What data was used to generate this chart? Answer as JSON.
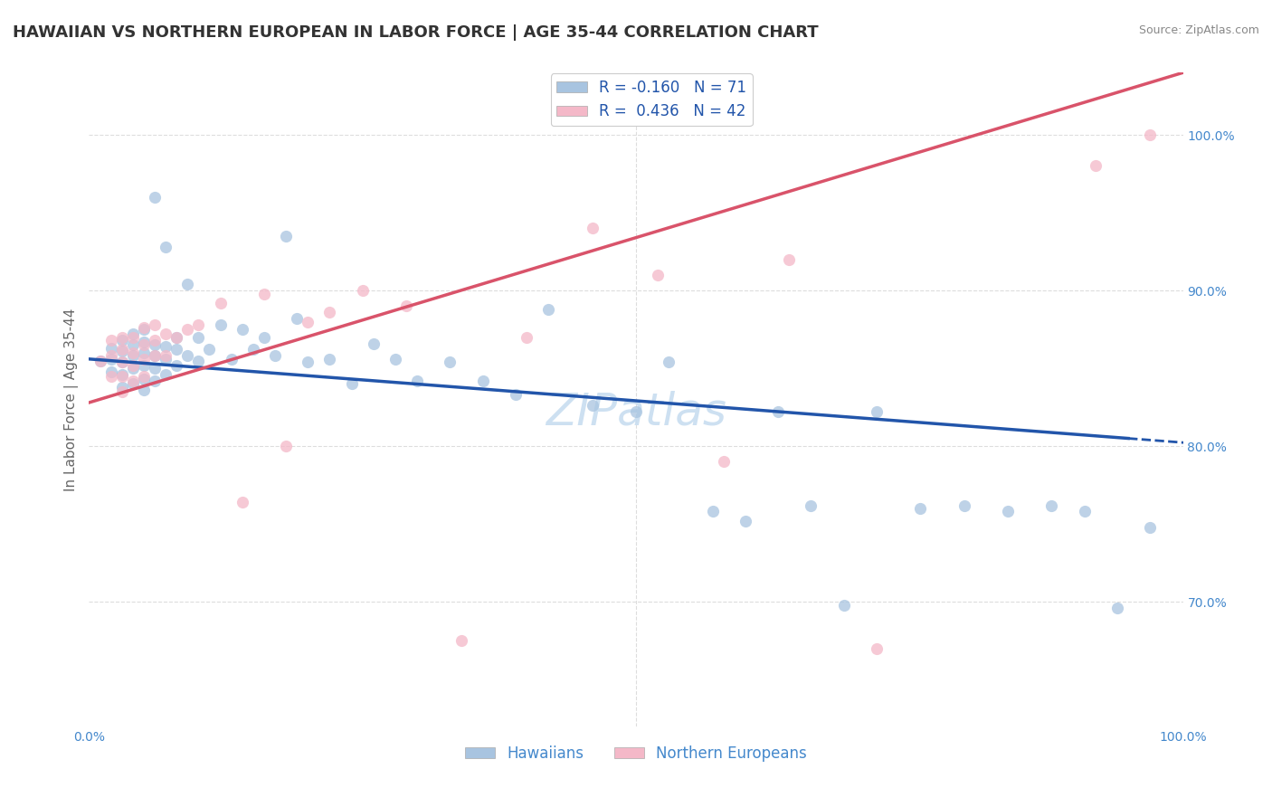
{
  "title": "HAWAIIAN VS NORTHERN EUROPEAN IN LABOR FORCE | AGE 35-44 CORRELATION CHART",
  "source": "Source: ZipAtlas.com",
  "ylabel": "In Labor Force | Age 35-44",
  "xlim": [
    0.0,
    1.0
  ],
  "ylim": [
    0.62,
    1.04
  ],
  "watermark": "ZIPatlas",
  "hawaiians_color": "#a8c4e0",
  "northern_europeans_color": "#f4b8c8",
  "hawaiians_line_color": "#2255aa",
  "northern_europeans_line_color": "#d9536a",
  "legend_R_hawaiians": "-0.160",
  "legend_N_hawaiians": "71",
  "legend_R_northern": "0.436",
  "legend_N_northern": "42",
  "hawaiians_scatter_x": [
    0.01,
    0.02,
    0.02,
    0.02,
    0.03,
    0.03,
    0.03,
    0.03,
    0.03,
    0.04,
    0.04,
    0.04,
    0.04,
    0.04,
    0.05,
    0.05,
    0.05,
    0.05,
    0.05,
    0.05,
    0.06,
    0.06,
    0.06,
    0.06,
    0.06,
    0.07,
    0.07,
    0.07,
    0.07,
    0.08,
    0.08,
    0.08,
    0.09,
    0.09,
    0.1,
    0.1,
    0.11,
    0.12,
    0.13,
    0.14,
    0.15,
    0.16,
    0.17,
    0.18,
    0.19,
    0.2,
    0.22,
    0.24,
    0.26,
    0.28,
    0.3,
    0.33,
    0.36,
    0.39,
    0.42,
    0.46,
    0.5,
    0.53,
    0.57,
    0.6,
    0.63,
    0.66,
    0.69,
    0.72,
    0.76,
    0.8,
    0.84,
    0.88,
    0.91,
    0.94,
    0.97
  ],
  "hawaiians_scatter_y": [
    0.855,
    0.848,
    0.856,
    0.863,
    0.838,
    0.846,
    0.854,
    0.861,
    0.868,
    0.84,
    0.85,
    0.858,
    0.865,
    0.872,
    0.836,
    0.843,
    0.852,
    0.86,
    0.867,
    0.875,
    0.842,
    0.85,
    0.858,
    0.865,
    0.96,
    0.846,
    0.856,
    0.864,
    0.928,
    0.852,
    0.862,
    0.87,
    0.858,
    0.904,
    0.855,
    0.87,
    0.862,
    0.878,
    0.856,
    0.875,
    0.862,
    0.87,
    0.858,
    0.935,
    0.882,
    0.854,
    0.856,
    0.84,
    0.866,
    0.856,
    0.842,
    0.854,
    0.842,
    0.833,
    0.888,
    0.826,
    0.822,
    0.854,
    0.758,
    0.752,
    0.822,
    0.762,
    0.698,
    0.822,
    0.76,
    0.762,
    0.758,
    0.762,
    0.758,
    0.696,
    0.748
  ],
  "northern_scatter_x": [
    0.01,
    0.02,
    0.02,
    0.02,
    0.03,
    0.03,
    0.03,
    0.03,
    0.03,
    0.04,
    0.04,
    0.04,
    0.04,
    0.05,
    0.05,
    0.05,
    0.05,
    0.06,
    0.06,
    0.06,
    0.07,
    0.07,
    0.08,
    0.09,
    0.1,
    0.12,
    0.14,
    0.16,
    0.18,
    0.2,
    0.22,
    0.25,
    0.29,
    0.34,
    0.4,
    0.46,
    0.52,
    0.58,
    0.64,
    0.72,
    0.92,
    0.97
  ],
  "northern_scatter_y": [
    0.855,
    0.845,
    0.858,
    0.868,
    0.835,
    0.845,
    0.854,
    0.862,
    0.87,
    0.842,
    0.852,
    0.86,
    0.87,
    0.845,
    0.856,
    0.865,
    0.876,
    0.858,
    0.868,
    0.878,
    0.858,
    0.872,
    0.87,
    0.875,
    0.878,
    0.892,
    0.764,
    0.898,
    0.8,
    0.88,
    0.886,
    0.9,
    0.89,
    0.675,
    0.87,
    0.94,
    0.91,
    0.79,
    0.92,
    0.67,
    0.98,
    1.0
  ],
  "haw_trend_x0": 0.0,
  "haw_trend_y0": 0.856,
  "haw_trend_x1": 0.95,
  "haw_trend_y1": 0.805,
  "haw_trend_xdash": 0.95,
  "haw_trend_xdash_end": 1.02,
  "nor_trend_x0": 0.0,
  "nor_trend_y0": 0.828,
  "nor_trend_x1": 1.0,
  "nor_trend_y1": 1.04,
  "grid_color": "#dddddd",
  "background_color": "#ffffff",
  "title_fontsize": 13,
  "axis_label_fontsize": 11,
  "tick_fontsize": 10,
  "legend_fontsize": 12,
  "watermark_fontsize": 36,
  "watermark_color": "#c8ddf0",
  "source_fontsize": 9
}
